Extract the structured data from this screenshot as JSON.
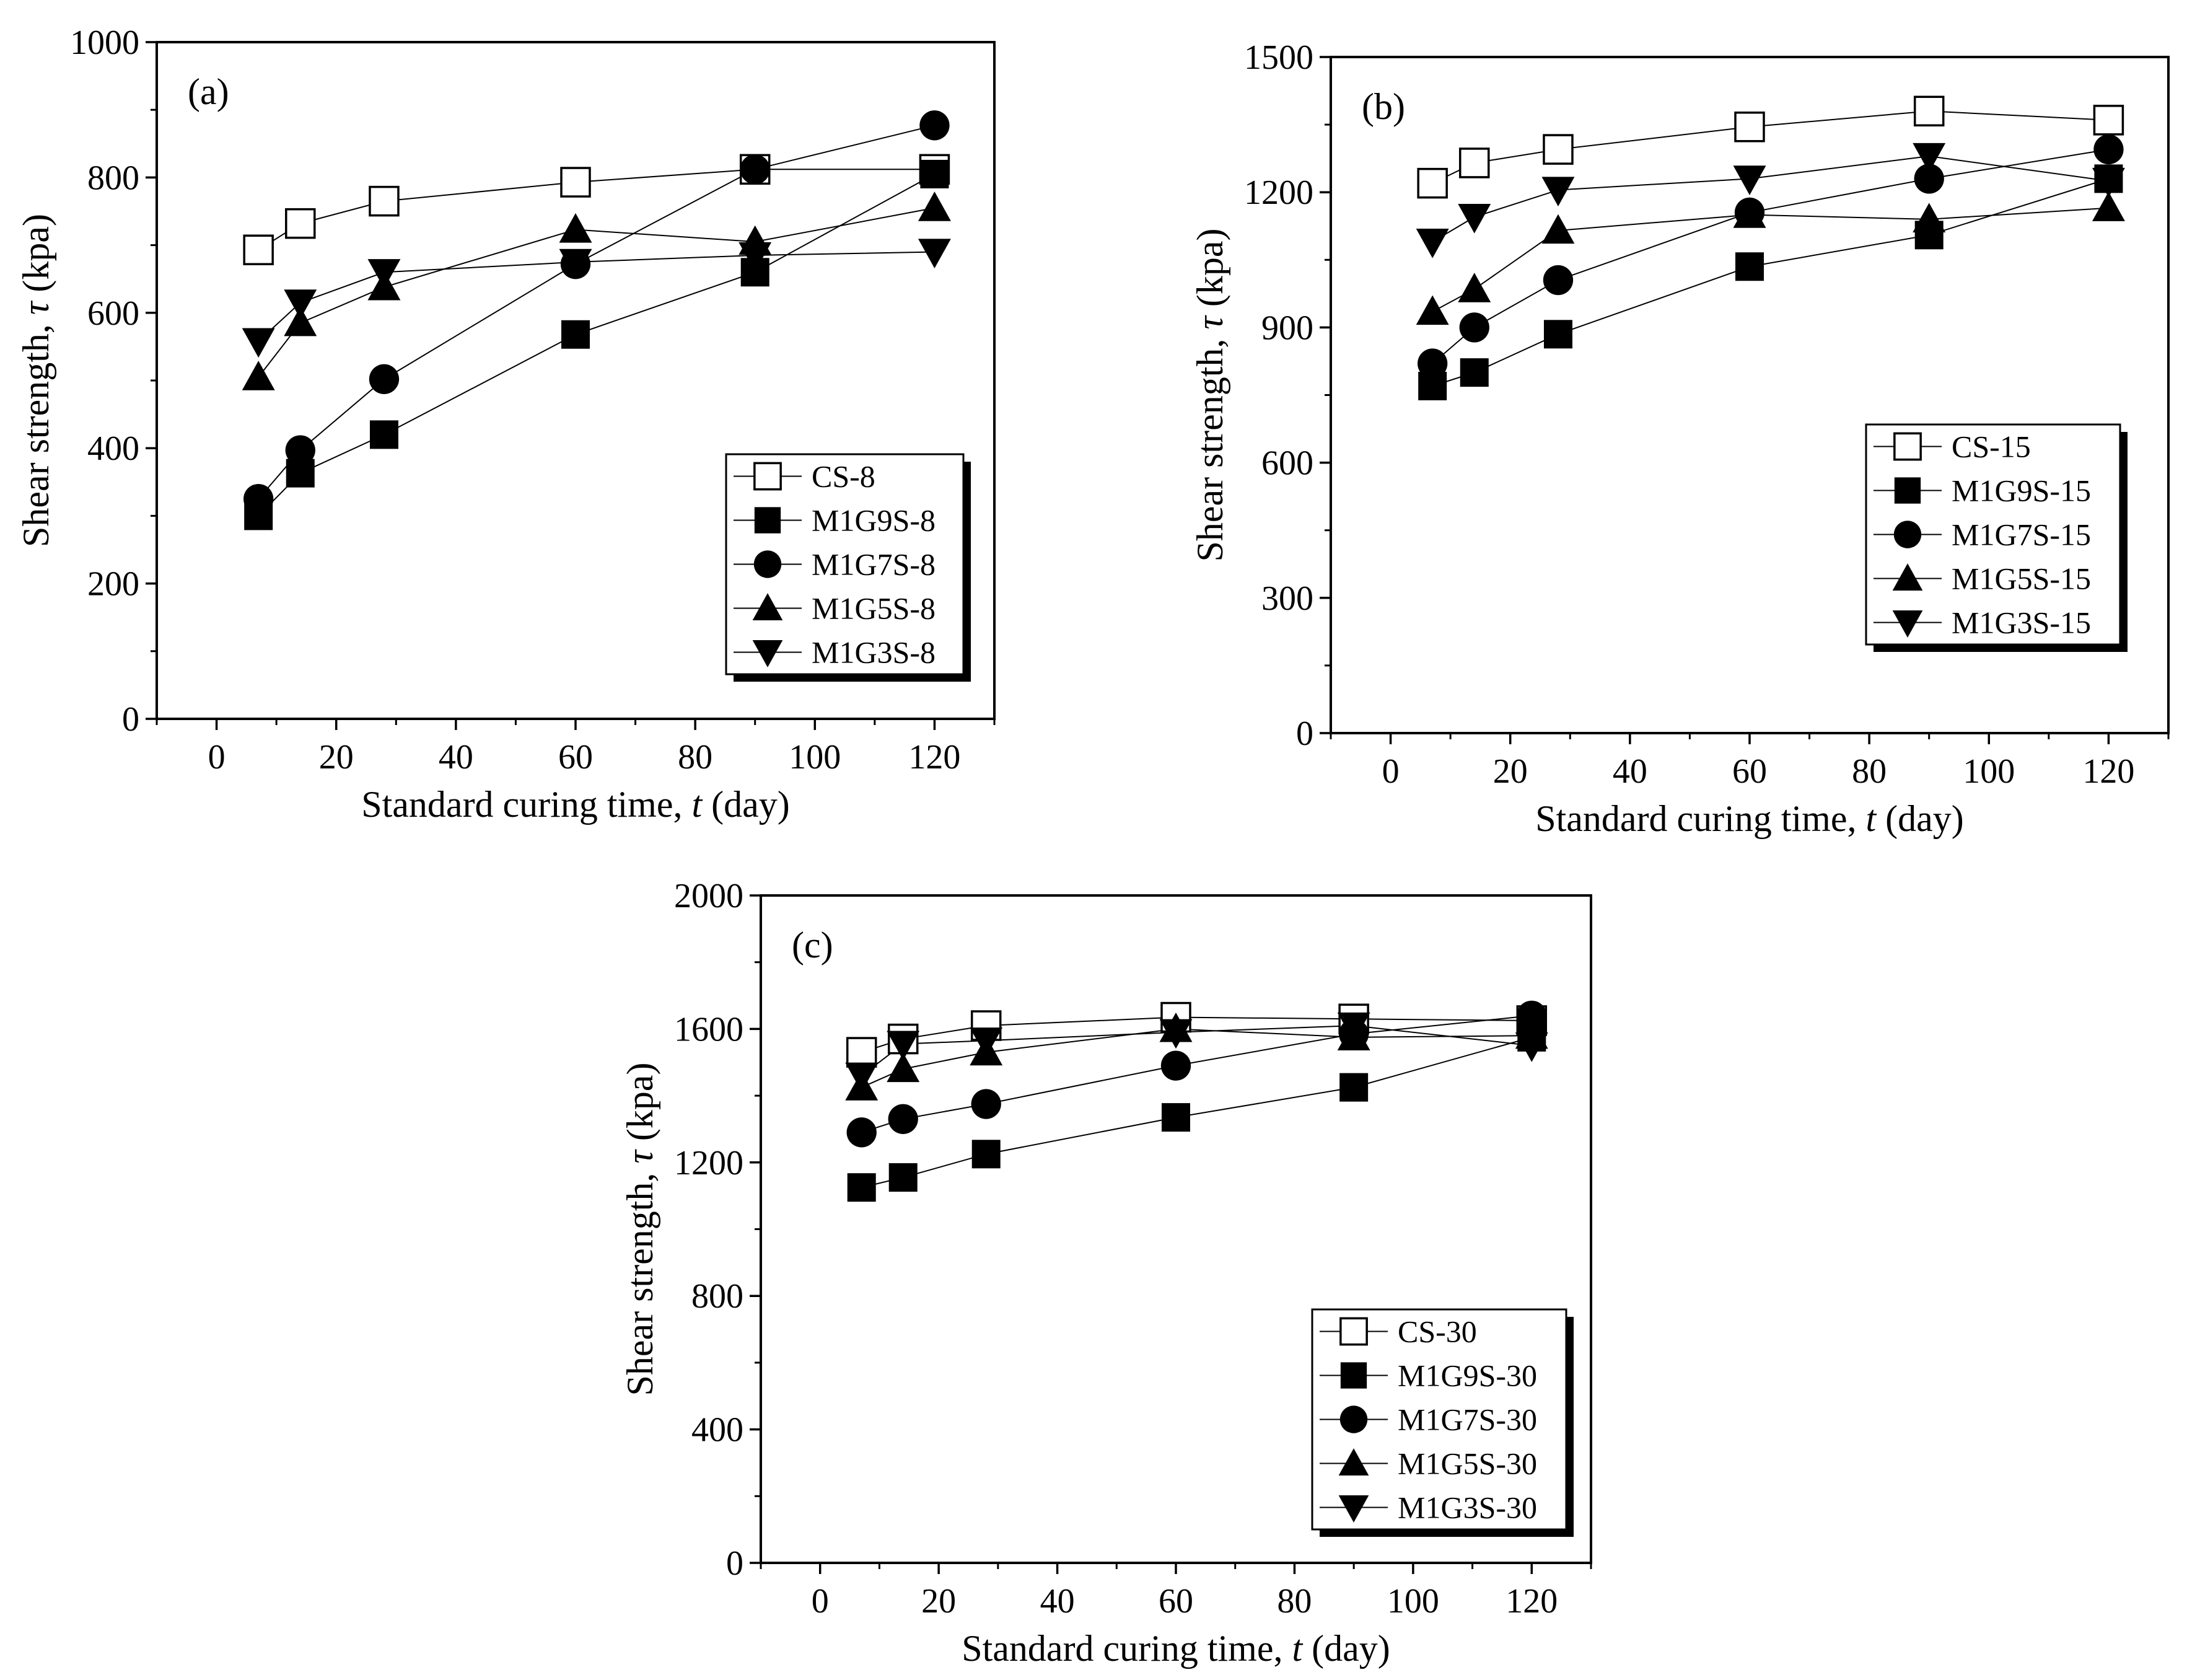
{
  "chart_data": [
    {
      "type": "line",
      "panel_label": "(a)",
      "xlabel": "Standard curing time, t (day)",
      "ylabel": "Shear strength, τ (kpa)",
      "xlim": [
        -10,
        130
      ],
      "ylim": [
        0,
        1000
      ],
      "xticks": [
        0,
        20,
        40,
        60,
        80,
        100,
        120
      ],
      "yticks": [
        0,
        200,
        400,
        600,
        800,
        1000
      ],
      "legend_position": "bottom-right",
      "x": [
        7,
        14,
        28,
        60,
        90,
        120
      ],
      "series": [
        {
          "name": "CS-8",
          "marker": "square-open",
          "values": [
            693,
            732,
            765,
            793,
            812,
            812
          ]
        },
        {
          "name": "M1G9S-8",
          "marker": "square",
          "values": [
            300,
            363,
            420,
            568,
            660,
            805
          ]
        },
        {
          "name": "M1G7S-8",
          "marker": "circle",
          "values": [
            325,
            397,
            502,
            672,
            812,
            877
          ]
        },
        {
          "name": "M1G5S-8",
          "marker": "triangle-up",
          "values": [
            505,
            585,
            638,
            723,
            705,
            755
          ]
        },
        {
          "name": "M1G3S-8",
          "marker": "triangle-down",
          "values": [
            558,
            615,
            660,
            675,
            685,
            690
          ]
        }
      ]
    },
    {
      "type": "line",
      "panel_label": "(b)",
      "xlabel": "Standard curing time, t (day)",
      "ylabel": "Shear strength, τ (kpa)",
      "xlim": [
        -10,
        130
      ],
      "ylim": [
        0,
        1500
      ],
      "xticks": [
        0,
        20,
        40,
        60,
        80,
        100,
        120
      ],
      "yticks": [
        0,
        300,
        600,
        900,
        1200,
        1500
      ],
      "legend_position": "bottom-right",
      "x": [
        7,
        14,
        28,
        60,
        90,
        120
      ],
      "series": [
        {
          "name": "CS-15",
          "marker": "square-open",
          "values": [
            1220,
            1265,
            1295,
            1345,
            1380,
            1360
          ]
        },
        {
          "name": "M1G9S-15",
          "marker": "square",
          "values": [
            770,
            800,
            885,
            1035,
            1105,
            1230
          ]
        },
        {
          "name": "M1G7S-15",
          "marker": "circle",
          "values": [
            820,
            900,
            1005,
            1155,
            1230,
            1295
          ]
        },
        {
          "name": "M1G5S-15",
          "marker": "triangle-up",
          "values": [
            935,
            985,
            1115,
            1150,
            1140,
            1165
          ]
        },
        {
          "name": "M1G3S-15",
          "marker": "triangle-down",
          "values": [
            1090,
            1145,
            1205,
            1230,
            1280,
            1225
          ]
        }
      ]
    },
    {
      "type": "line",
      "panel_label": "(c)",
      "xlabel": "Standard curing time, t (day)",
      "ylabel": "Shear strength, τ (kpa)",
      "xlim": [
        -10,
        130
      ],
      "ylim": [
        0,
        2000
      ],
      "xticks": [
        0,
        20,
        40,
        60,
        80,
        100,
        120
      ],
      "yticks": [
        0,
        400,
        800,
        1200,
        1600,
        2000
      ],
      "legend_position": "bottom-right",
      "x": [
        7,
        14,
        28,
        60,
        90,
        120
      ],
      "series": [
        {
          "name": "CS-30",
          "marker": "square-open",
          "values": [
            1530,
            1570,
            1610,
            1635,
            1630,
            1625
          ]
        },
        {
          "name": "M1G9S-30",
          "marker": "square",
          "values": [
            1125,
            1155,
            1225,
            1335,
            1425,
            1575
          ]
        },
        {
          "name": "M1G7S-30",
          "marker": "circle",
          "values": [
            1290,
            1330,
            1375,
            1490,
            1585,
            1640
          ]
        },
        {
          "name": "M1G5S-30",
          "marker": "triangle-up",
          "values": [
            1425,
            1480,
            1530,
            1600,
            1575,
            1580
          ]
        },
        {
          "name": "M1G3S-30",
          "marker": "triangle-down",
          "values": [
            1460,
            1555,
            1565,
            1590,
            1610,
            1550
          ]
        }
      ]
    }
  ]
}
